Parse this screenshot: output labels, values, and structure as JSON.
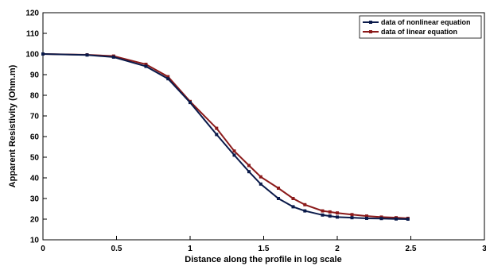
{
  "chart_data": {
    "type": "line",
    "title": "",
    "xlabel": "Distance along the profile in log scale",
    "ylabel": "Apparent Resistivity (Ohm.m)",
    "xlim": [
      0,
      3
    ],
    "ylim": [
      10,
      120
    ],
    "x_ticks": [
      "0",
      "0.5",
      "1",
      "1.5",
      "2",
      "2.5",
      "3"
    ],
    "y_ticks": [
      "10",
      "20",
      "30",
      "40",
      "50",
      "60",
      "70",
      "80",
      "90",
      "100",
      "110",
      "120"
    ],
    "grid": false,
    "legend_position": "top-right",
    "series": [
      {
        "name": "data of nonlinear equation",
        "color": "#0a1a4a",
        "x": [
          0,
          0.3,
          0.48,
          0.7,
          0.85,
          1.0,
          1.18,
          1.3,
          1.4,
          1.48,
          1.6,
          1.7,
          1.78,
          1.9,
          1.95,
          2.0,
          2.1,
          2.2,
          2.3,
          2.4,
          2.48
        ],
        "y": [
          100,
          99.5,
          98.5,
          94,
          88,
          76.5,
          61,
          51,
          43,
          37,
          30,
          26,
          24,
          22,
          21.5,
          21,
          20.7,
          20.4,
          20.3,
          20.1,
          20
        ]
      },
      {
        "name": "data of linear equation",
        "color": "#8b1a1a",
        "x": [
          0,
          0.3,
          0.48,
          0.7,
          0.85,
          1.0,
          1.18,
          1.3,
          1.4,
          1.48,
          1.6,
          1.7,
          1.78,
          1.9,
          1.95,
          2.0,
          2.1,
          2.2,
          2.3,
          2.4,
          2.48
        ],
        "y": [
          100,
          99.6,
          99,
          95,
          89,
          77,
          64,
          53,
          46,
          40.5,
          35,
          30,
          27,
          24,
          23.5,
          23,
          22.2,
          21.5,
          21,
          20.7,
          20.4
        ]
      }
    ]
  }
}
